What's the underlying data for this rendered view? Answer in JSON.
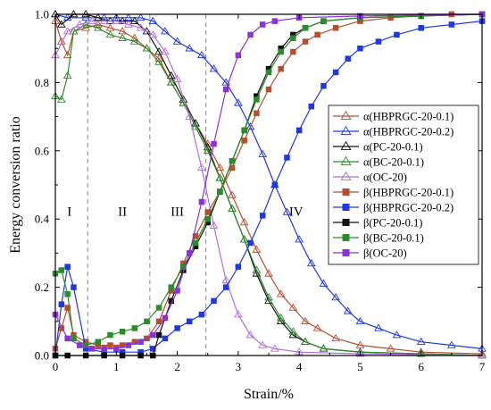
{
  "chart_data": {
    "type": "line",
    "title": "",
    "xlabel": "Strain/%",
    "ylabel": "Energy conversion ratio",
    "xlim": [
      0,
      7
    ],
    "ylim": [
      0,
      1.0
    ],
    "x_ticks": [
      "0",
      "1",
      "2",
      "3",
      "4",
      "5",
      "6",
      "7"
    ],
    "y_ticks": [
      "0.0",
      "0.2",
      "0.4",
      "0.6",
      "0.8",
      "1.0"
    ],
    "grid": false,
    "legend_position": "right",
    "region_boundaries": [
      0.53,
      1.55,
      2.47
    ],
    "regions": [
      {
        "label": "I",
        "x": 0.23,
        "y": 0.41
      },
      {
        "label": "II",
        "x": 1.1,
        "y": 0.41
      },
      {
        "label": "III",
        "x": 2.0,
        "y": 0.41
      },
      {
        "label": "IV",
        "x": 3.95,
        "y": 0.41
      }
    ],
    "series": [
      {
        "name": "α(HBPRGC-20-0.1)",
        "color": "#b54f30",
        "marker": "triangle",
        "filled": false,
        "points": [
          [
            0,
            0.98
          ],
          [
            0.1,
            0.92
          ],
          [
            0.2,
            0.88
          ],
          [
            0.3,
            0.95
          ],
          [
            0.5,
            0.96
          ],
          [
            0.7,
            0.97
          ],
          [
            0.9,
            0.96
          ],
          [
            1.1,
            0.95
          ],
          [
            1.3,
            0.93
          ],
          [
            1.5,
            0.9
          ],
          [
            1.7,
            0.87
          ],
          [
            1.9,
            0.8
          ],
          [
            2.1,
            0.74
          ],
          [
            2.3,
            0.68
          ],
          [
            2.5,
            0.62
          ],
          [
            2.7,
            0.55
          ],
          [
            2.9,
            0.47
          ],
          [
            3.1,
            0.39
          ],
          [
            3.3,
            0.31
          ],
          [
            3.5,
            0.24
          ],
          [
            3.7,
            0.18
          ],
          [
            3.9,
            0.14
          ],
          [
            4.1,
            0.1
          ],
          [
            4.3,
            0.08
          ],
          [
            4.6,
            0.05
          ],
          [
            5.0,
            0.03
          ],
          [
            5.5,
            0.02
          ],
          [
            6.0,
            0.01
          ],
          [
            7.0,
            0.005
          ]
        ]
      },
      {
        "name": "α(HBPRGC-20-0.2)",
        "color": "#1f38e0",
        "marker": "triangle",
        "filled": false,
        "points": [
          [
            0,
            1.0
          ],
          [
            0.2,
            0.99
          ],
          [
            0.5,
            0.99
          ],
          [
            0.8,
            0.99
          ],
          [
            1.0,
            0.99
          ],
          [
            1.2,
            0.99
          ],
          [
            1.4,
            0.99
          ],
          [
            1.6,
            0.98
          ],
          [
            1.8,
            0.95
          ],
          [
            2.0,
            0.92
          ],
          [
            2.2,
            0.9
          ],
          [
            2.4,
            0.88
          ],
          [
            2.6,
            0.84
          ],
          [
            2.8,
            0.8
          ],
          [
            3.0,
            0.74
          ],
          [
            3.2,
            0.67
          ],
          [
            3.4,
            0.59
          ],
          [
            3.6,
            0.5
          ],
          [
            3.8,
            0.42
          ],
          [
            4.0,
            0.34
          ],
          [
            4.2,
            0.27
          ],
          [
            4.4,
            0.21
          ],
          [
            4.6,
            0.17
          ],
          [
            4.8,
            0.13
          ],
          [
            5.0,
            0.1
          ],
          [
            5.3,
            0.08
          ],
          [
            5.6,
            0.06
          ],
          [
            6.0,
            0.04
          ],
          [
            6.5,
            0.03
          ],
          [
            7.0,
            0.02
          ]
        ]
      },
      {
        "name": "α(PC-20-0.1)",
        "color": "#111111",
        "marker": "triangle",
        "filled": false,
        "points": [
          [
            0,
            1.0
          ],
          [
            0.1,
            0.97
          ],
          [
            0.3,
            1.0
          ],
          [
            0.5,
            1.0
          ],
          [
            0.7,
            0.99
          ],
          [
            0.9,
            0.98
          ],
          [
            1.1,
            0.98
          ],
          [
            1.3,
            0.98
          ],
          [
            1.5,
            0.95
          ],
          [
            1.7,
            0.89
          ],
          [
            1.9,
            0.82
          ],
          [
            2.1,
            0.75
          ],
          [
            2.3,
            0.68
          ],
          [
            2.5,
            0.61
          ],
          [
            2.7,
            0.52
          ],
          [
            2.9,
            0.43
          ],
          [
            3.1,
            0.34
          ],
          [
            3.3,
            0.24
          ],
          [
            3.5,
            0.16
          ],
          [
            3.7,
            0.1
          ],
          [
            3.9,
            0.06
          ],
          [
            4.1,
            0.04
          ],
          [
            4.4,
            0.02
          ],
          [
            5.0,
            0.01
          ],
          [
            6.0,
            0.005
          ],
          [
            7.0,
            0.0
          ]
        ]
      },
      {
        "name": "α(BC-20-0.1)",
        "color": "#2b8c2b",
        "marker": "triangle",
        "filled": false,
        "points": [
          [
            0,
            0.76
          ],
          [
            0.1,
            0.75
          ],
          [
            0.2,
            0.82
          ],
          [
            0.3,
            0.95
          ],
          [
            0.5,
            0.97
          ],
          [
            0.7,
            0.96
          ],
          [
            0.9,
            0.94
          ],
          [
            1.1,
            0.93
          ],
          [
            1.3,
            0.92
          ],
          [
            1.5,
            0.9
          ],
          [
            1.7,
            0.86
          ],
          [
            1.9,
            0.8
          ],
          [
            2.1,
            0.74
          ],
          [
            2.3,
            0.67
          ],
          [
            2.5,
            0.6
          ],
          [
            2.7,
            0.52
          ],
          [
            2.9,
            0.43
          ],
          [
            3.1,
            0.34
          ],
          [
            3.3,
            0.25
          ],
          [
            3.5,
            0.17
          ],
          [
            3.7,
            0.11
          ],
          [
            3.9,
            0.07
          ],
          [
            4.1,
            0.04
          ],
          [
            4.4,
            0.02
          ],
          [
            5.0,
            0.01
          ],
          [
            6.0,
            0.005
          ],
          [
            7.0,
            0.0
          ]
        ]
      },
      {
        "name": "α(OC-20)",
        "color": "#b070d8",
        "marker": "triangle",
        "filled": false,
        "points": [
          [
            0,
            0.88
          ],
          [
            0.2,
            0.95
          ],
          [
            0.4,
            0.97
          ],
          [
            0.6,
            0.98
          ],
          [
            0.8,
            0.98
          ],
          [
            1.0,
            0.98
          ],
          [
            1.2,
            0.97
          ],
          [
            1.4,
            0.96
          ],
          [
            1.6,
            0.94
          ],
          [
            1.8,
            0.89
          ],
          [
            2.0,
            0.81
          ],
          [
            2.2,
            0.7
          ],
          [
            2.4,
            0.55
          ],
          [
            2.6,
            0.38
          ],
          [
            2.8,
            0.22
          ],
          [
            3.0,
            0.12
          ],
          [
            3.2,
            0.06
          ],
          [
            3.4,
            0.03
          ],
          [
            3.6,
            0.02
          ],
          [
            4.0,
            0.01
          ],
          [
            5.0,
            0.005
          ],
          [
            7.0,
            0.0
          ]
        ]
      },
      {
        "name": "β(HBPRGC-20-0.1)",
        "color": "#b54f30",
        "marker": "square",
        "filled": true,
        "points": [
          [
            0,
            0.02
          ],
          [
            0.1,
            0.08
          ],
          [
            0.2,
            0.14
          ],
          [
            0.3,
            0.06
          ],
          [
            0.5,
            0.04
          ],
          [
            0.7,
            0.03
          ],
          [
            0.9,
            0.03
          ],
          [
            1.1,
            0.03
          ],
          [
            1.3,
            0.04
          ],
          [
            1.5,
            0.05
          ],
          [
            1.7,
            0.1
          ],
          [
            1.9,
            0.19
          ],
          [
            2.1,
            0.27
          ],
          [
            2.3,
            0.35
          ],
          [
            2.5,
            0.42
          ],
          [
            2.7,
            0.48
          ],
          [
            2.9,
            0.55
          ],
          [
            3.1,
            0.63
          ],
          [
            3.3,
            0.71
          ],
          [
            3.5,
            0.78
          ],
          [
            3.7,
            0.84
          ],
          [
            3.9,
            0.89
          ],
          [
            4.1,
            0.92
          ],
          [
            4.3,
            0.94
          ],
          [
            4.6,
            0.96
          ],
          [
            5.0,
            0.98
          ],
          [
            5.5,
            0.99
          ],
          [
            6.0,
            0.995
          ],
          [
            6.5,
            1.0
          ],
          [
            7.0,
            1.0
          ]
        ]
      },
      {
        "name": "β(HBPRGC-20-0.2)",
        "color": "#1f38e0",
        "marker": "square",
        "filled": true,
        "points": [
          [
            0,
            0.0
          ],
          [
            0.1,
            0.15
          ],
          [
            0.2,
            0.26
          ],
          [
            0.3,
            0.2
          ],
          [
            0.5,
            0.02
          ],
          [
            0.8,
            0.01
          ],
          [
            1.1,
            0.01
          ],
          [
            1.4,
            0.01
          ],
          [
            1.6,
            0.02
          ],
          [
            1.8,
            0.05
          ],
          [
            2.0,
            0.08
          ],
          [
            2.2,
            0.1
          ],
          [
            2.4,
            0.12
          ],
          [
            2.6,
            0.16
          ],
          [
            2.8,
            0.2
          ],
          [
            3.0,
            0.26
          ],
          [
            3.2,
            0.33
          ],
          [
            3.4,
            0.41
          ],
          [
            3.6,
            0.5
          ],
          [
            3.8,
            0.58
          ],
          [
            4.0,
            0.66
          ],
          [
            4.2,
            0.73
          ],
          [
            4.4,
            0.79
          ],
          [
            4.6,
            0.83
          ],
          [
            4.8,
            0.87
          ],
          [
            5.0,
            0.9
          ],
          [
            5.3,
            0.92
          ],
          [
            5.6,
            0.94
          ],
          [
            6.0,
            0.96
          ],
          [
            6.5,
            0.97
          ],
          [
            7.0,
            0.98
          ]
        ]
      },
      {
        "name": "β(PC-20-0.1)",
        "color": "#111111",
        "marker": "square",
        "filled": true,
        "points": [
          [
            0,
            0.0
          ],
          [
            0.2,
            0.0
          ],
          [
            0.5,
            0.0
          ],
          [
            0.8,
            0.0
          ],
          [
            1.1,
            0.0
          ],
          [
            1.4,
            0.0
          ],
          [
            1.6,
            0.0
          ],
          [
            1.7,
            0.06
          ],
          [
            1.9,
            0.16
          ],
          [
            2.1,
            0.25
          ],
          [
            2.3,
            0.32
          ],
          [
            2.5,
            0.39
          ],
          [
            2.7,
            0.48
          ],
          [
            2.9,
            0.57
          ],
          [
            3.1,
            0.66
          ],
          [
            3.3,
            0.76
          ],
          [
            3.5,
            0.84
          ],
          [
            3.7,
            0.9
          ],
          [
            3.9,
            0.94
          ],
          [
            4.1,
            0.96
          ],
          [
            4.4,
            0.98
          ],
          [
            5.0,
            0.99
          ],
          [
            6.0,
            0.995
          ],
          [
            7.0,
            1.0
          ]
        ]
      },
      {
        "name": "β(BC-20-0.1)",
        "color": "#2b8c2b",
        "marker": "square",
        "filled": true,
        "points": [
          [
            0,
            0.24
          ],
          [
            0.1,
            0.25
          ],
          [
            0.2,
            0.18
          ],
          [
            0.3,
            0.05
          ],
          [
            0.5,
            0.03
          ],
          [
            0.7,
            0.04
          ],
          [
            0.9,
            0.06
          ],
          [
            1.1,
            0.07
          ],
          [
            1.3,
            0.08
          ],
          [
            1.5,
            0.1
          ],
          [
            1.7,
            0.14
          ],
          [
            1.9,
            0.2
          ],
          [
            2.1,
            0.26
          ],
          [
            2.3,
            0.33
          ],
          [
            2.5,
            0.4
          ],
          [
            2.7,
            0.48
          ],
          [
            2.9,
            0.57
          ],
          [
            3.1,
            0.66
          ],
          [
            3.3,
            0.75
          ],
          [
            3.5,
            0.83
          ],
          [
            3.7,
            0.89
          ],
          [
            3.9,
            0.93
          ],
          [
            4.1,
            0.96
          ],
          [
            4.4,
            0.98
          ],
          [
            5.0,
            0.99
          ],
          [
            6.0,
            0.995
          ],
          [
            7.0,
            1.0
          ]
        ]
      },
      {
        "name": "β(OC-20)",
        "color": "#8a33d6",
        "marker": "square",
        "filled": true,
        "points": [
          [
            0,
            0.12
          ],
          [
            0.2,
            0.05
          ],
          [
            0.4,
            0.03
          ],
          [
            0.6,
            0.02
          ],
          [
            0.8,
            0.02
          ],
          [
            1.0,
            0.02
          ],
          [
            1.2,
            0.03
          ],
          [
            1.4,
            0.04
          ],
          [
            1.6,
            0.06
          ],
          [
            1.8,
            0.11
          ],
          [
            2.0,
            0.19
          ],
          [
            2.2,
            0.3
          ],
          [
            2.4,
            0.45
          ],
          [
            2.6,
            0.62
          ],
          [
            2.8,
            0.78
          ],
          [
            3.0,
            0.88
          ],
          [
            3.2,
            0.94
          ],
          [
            3.4,
            0.97
          ],
          [
            3.6,
            0.98
          ],
          [
            4.0,
            0.99
          ],
          [
            5.0,
            0.995
          ],
          [
            7.0,
            1.0
          ]
        ]
      }
    ]
  }
}
